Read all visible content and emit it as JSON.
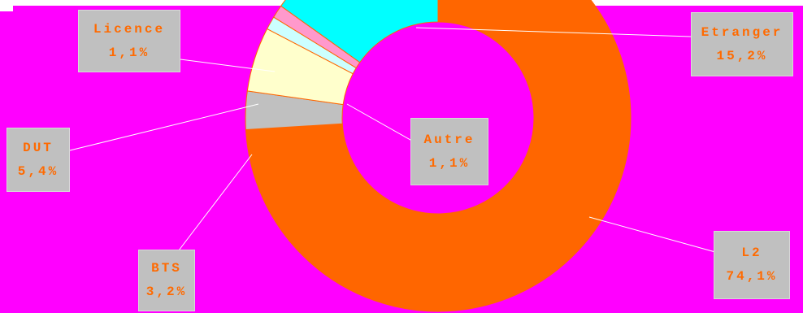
{
  "chart_data": {
    "type": "pie",
    "variant": "donut",
    "title": "",
    "slices": [
      {
        "label": "L2",
        "value": 74.1,
        "value_label": "74,1%",
        "color": "#ff6600"
      },
      {
        "label": "BTS",
        "value": 3.2,
        "value_label": "3,2%",
        "color": "#c0c0c0"
      },
      {
        "label": "DUT",
        "value": 5.4,
        "value_label": "5,4%",
        "color": "#ffffcc"
      },
      {
        "label": "Autre",
        "value": 1.1,
        "value_label": "1,1%",
        "color": "#ccffff"
      },
      {
        "label": "Licence",
        "value": 1.1,
        "value_label": "1,1%",
        "color": "#ff99cc"
      },
      {
        "label": "Etranger",
        "value": 15.2,
        "value_label": "15,2%",
        "color": "#00ffff"
      }
    ],
    "background_color": "#ff00ff",
    "label_box_color": "#c0c0c0",
    "label_text_color": "#ff6a00",
    "leader_line_color": "#ffffff",
    "legend": "none",
    "grid": false
  }
}
